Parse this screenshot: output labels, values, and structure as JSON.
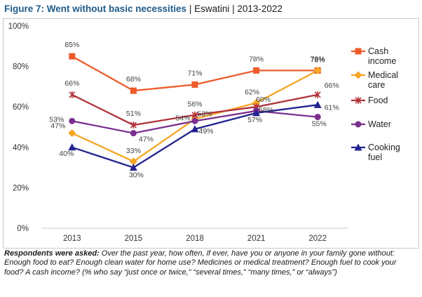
{
  "header": {
    "title_main": "Figure 7: Went without basic necessities",
    "title_rest": " | Eswatini | 2013-2022"
  },
  "note": {
    "label": "Respondents were asked:",
    "text": " Over the past year, how often, if ever, have you or anyone in your family gone without: Enough food to eat? Enough clean water for home use? Medicines or medical treatment? Enough fuel to cook your food? A cash income? (% who say “just once or twice,” “several times,” “many times,” or “always”)"
  },
  "chart_data": {
    "type": "line",
    "categories": [
      "2013",
      "2015",
      "2018",
      "2021",
      "2022"
    ],
    "ylim": [
      0,
      100
    ],
    "y_ticks": [
      "0%",
      "20%",
      "40%",
      "60%",
      "80%",
      "100%"
    ],
    "grid": false,
    "legend_position": "right",
    "series": [
      {
        "name": "Cash income",
        "legend_lines": [
          "Cash",
          "income"
        ],
        "color": "#ed5b2a",
        "marker": "square",
        "values": [
          85,
          68,
          71,
          78,
          78
        ],
        "labels": [
          "85%",
          "68%",
          "71%",
          "78%",
          "78%"
        ]
      },
      {
        "name": "Medical care",
        "legend_lines": [
          "Medical",
          "care"
        ],
        "color": "#f5a623",
        "marker": "diamond",
        "values": [
          47,
          33,
          54,
          62,
          78
        ],
        "labels": [
          "47%",
          "33%",
          "54%",
          "62%",
          "78%"
        ]
      },
      {
        "name": "Food",
        "legend_lines": [
          "Food"
        ],
        "color": "#b0323a",
        "marker": "star",
        "values": [
          66,
          51,
          56,
          60,
          66
        ],
        "labels": [
          "66%",
          "51%",
          "56%",
          "60%",
          "66%"
        ]
      },
      {
        "name": "Water",
        "legend_lines": [
          "Water"
        ],
        "color": "#7b2f8e",
        "marker": "circle",
        "values": [
          53,
          47,
          53,
          58,
          55
        ],
        "labels": [
          "53%",
          "47%",
          "53%",
          "58%",
          "55%"
        ]
      },
      {
        "name": "Cooking fuel",
        "legend_lines": [
          "Cooking",
          "fuel"
        ],
        "color": "#23238f",
        "marker": "triangle",
        "values": [
          40,
          30,
          49,
          57,
          61
        ],
        "labels": [
          "40%",
          "30%",
          "49%",
          "57%",
          "61%"
        ]
      }
    ]
  }
}
